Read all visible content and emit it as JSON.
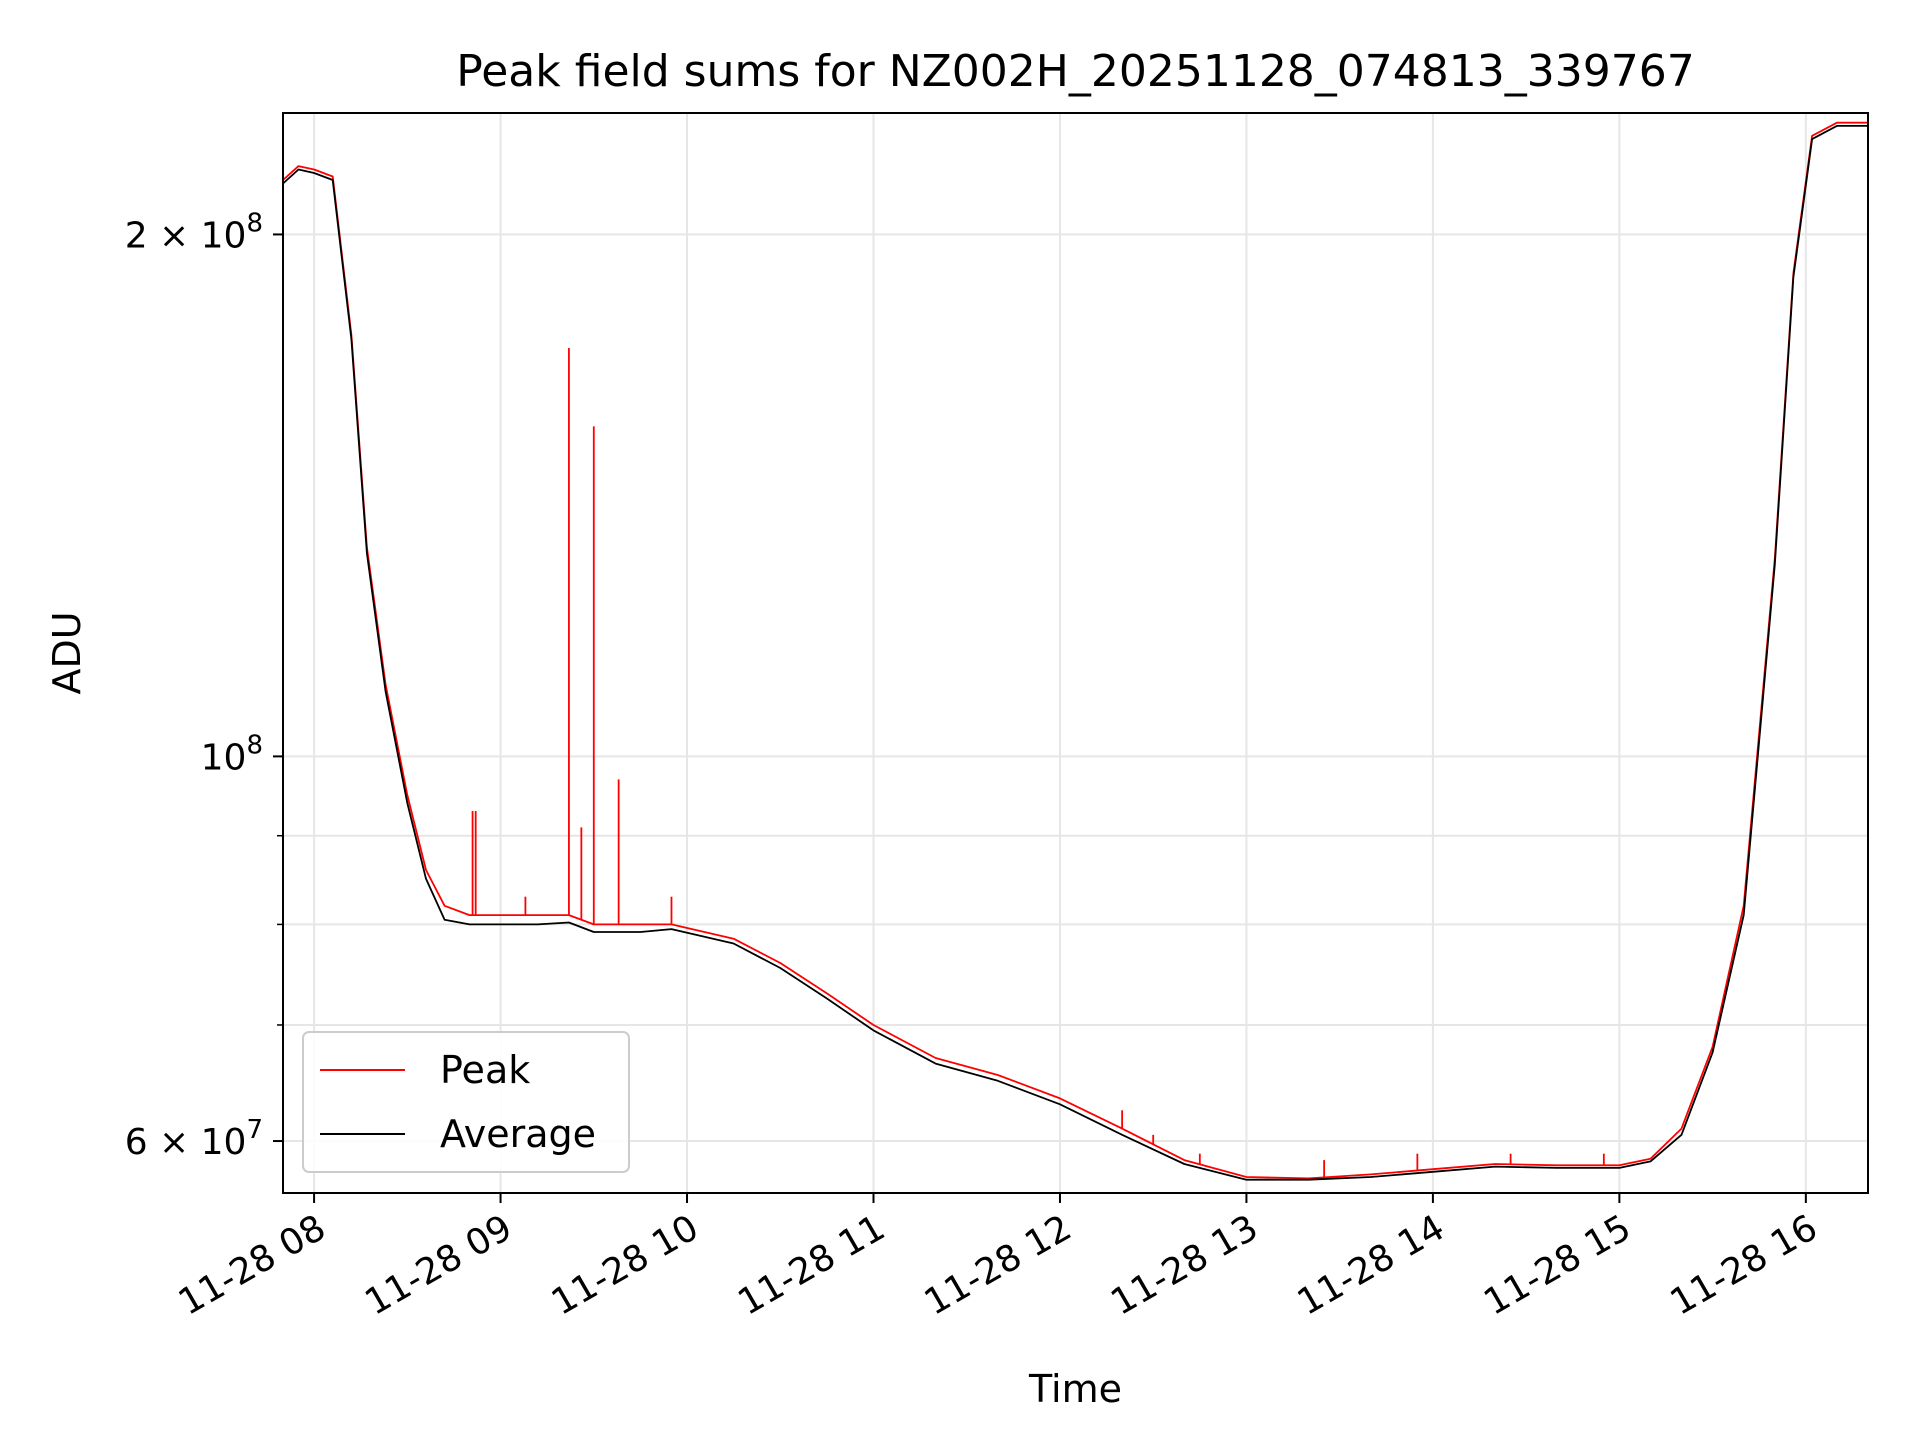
{
  "chart_data": {
    "type": "line",
    "title": "Peak field sums for NZ002H_20251128_074813_339767",
    "xlabel": "Time",
    "ylabel": "ADU",
    "y_scale": "log",
    "grid": true,
    "legend_position": "lower-left",
    "x_range": [
      "2025-11-28 07:50",
      "2025-11-28 16:20"
    ],
    "y_range": [
      56000000,
      235000000
    ],
    "x_ticks": [
      {
        "t": "2025-11-28 08:00",
        "label": "11-28 08"
      },
      {
        "t": "2025-11-28 09:00",
        "label": "11-28 09"
      },
      {
        "t": "2025-11-28 10:00",
        "label": "11-28 10"
      },
      {
        "t": "2025-11-28 11:00",
        "label": "11-28 11"
      },
      {
        "t": "2025-11-28 12:00",
        "label": "11-28 12"
      },
      {
        "t": "2025-11-28 13:00",
        "label": "11-28 13"
      },
      {
        "t": "2025-11-28 14:00",
        "label": "11-28 14"
      },
      {
        "t": "2025-11-28 15:00",
        "label": "11-28 15"
      },
      {
        "t": "2025-11-28 16:00",
        "label": "11-28 16"
      }
    ],
    "y_major_ticks": [
      {
        "value": 60000000,
        "label": "6 × 10^7",
        "mant": "6 × 10",
        "exp": "7"
      },
      {
        "value": 100000000,
        "label": "10^8",
        "mant": "10",
        "exp": "8"
      },
      {
        "value": 200000000,
        "label": "2 × 10^8",
        "mant": "2 × 10",
        "exp": "8"
      }
    ],
    "y_minor_ticks": [
      70000000,
      80000000,
      90000000
    ],
    "series": [
      {
        "name": "Peak",
        "color": "#ff0000",
        "points": [
          [
            "2025-11-28 07:50",
            215000000
          ],
          [
            "2025-11-28 07:55",
            219000000
          ],
          [
            "2025-11-28 08:00",
            218000000
          ],
          [
            "2025-11-28 08:06",
            216000000
          ],
          [
            "2025-11-28 08:12",
            175000000
          ],
          [
            "2025-11-28 08:17",
            132000000
          ],
          [
            "2025-11-28 08:23",
            110000000
          ],
          [
            "2025-11-28 08:30",
            95000000
          ],
          [
            "2025-11-28 08:36",
            86000000
          ],
          [
            "2025-11-28 08:42",
            82000000
          ],
          [
            "2025-11-28 08:50",
            81000000
          ],
          [
            "2025-11-28 09:00",
            81000000
          ],
          [
            "2025-11-28 09:12",
            81000000
          ],
          [
            "2025-11-28 09:22",
            81000000
          ],
          [
            "2025-11-28 09:30",
            80000000
          ],
          [
            "2025-11-28 09:45",
            80000000
          ],
          [
            "2025-11-28 09:55",
            80000000
          ],
          [
            "2025-11-28 10:15",
            78500000
          ],
          [
            "2025-11-28 10:30",
            76000000
          ],
          [
            "2025-11-28 10:45",
            73000000
          ],
          [
            "2025-11-28 11:00",
            70000000
          ],
          [
            "2025-11-28 11:20",
            67000000
          ],
          [
            "2025-11-28 11:40",
            65500000
          ],
          [
            "2025-11-28 12:00",
            63500000
          ],
          [
            "2025-11-28 12:20",
            61000000
          ],
          [
            "2025-11-28 12:40",
            58500000
          ],
          [
            "2025-11-28 13:00",
            57200000
          ],
          [
            "2025-11-28 13:20",
            57100000
          ],
          [
            "2025-11-28 13:40",
            57400000
          ],
          [
            "2025-11-28 14:00",
            57800000
          ],
          [
            "2025-11-28 14:20",
            58200000
          ],
          [
            "2025-11-28 14:40",
            58100000
          ],
          [
            "2025-11-28 15:00",
            58100000
          ],
          [
            "2025-11-28 15:10",
            58600000
          ],
          [
            "2025-11-28 15:20",
            61000000
          ],
          [
            "2025-11-28 15:30",
            68000000
          ],
          [
            "2025-11-28 15:40",
            82000000
          ],
          [
            "2025-11-28 15:50",
            130000000
          ],
          [
            "2025-11-28 15:56",
            190000000
          ],
          [
            "2025-11-28 16:02",
            228000000
          ],
          [
            "2025-11-28 16:10",
            232000000
          ],
          [
            "2025-11-28 16:20",
            232000000
          ]
        ],
        "spikes": [
          [
            "2025-11-28 08:51",
            93000000
          ],
          [
            "2025-11-28 08:52",
            93000000
          ],
          [
            "2025-11-28 09:08",
            83000000
          ],
          [
            "2025-11-28 09:22",
            172000000
          ],
          [
            "2025-11-28 09:26",
            91000000
          ],
          [
            "2025-11-28 09:30",
            155000000
          ],
          [
            "2025-11-28 09:38",
            97000000
          ],
          [
            "2025-11-28 09:55",
            83000000
          ],
          [
            "2025-11-28 12:20",
            62500000
          ],
          [
            "2025-11-28 12:30",
            60500000
          ],
          [
            "2025-11-28 12:45",
            59000000
          ],
          [
            "2025-11-28 13:25",
            58500000
          ],
          [
            "2025-11-28 13:55",
            59000000
          ],
          [
            "2025-11-28 14:25",
            59000000
          ],
          [
            "2025-11-28 14:55",
            59000000
          ]
        ]
      },
      {
        "name": "Average",
        "color": "#000000",
        "points": [
          [
            "2025-11-28 07:50",
            214000000
          ],
          [
            "2025-11-28 07:55",
            218000000
          ],
          [
            "2025-11-28 08:00",
            217000000
          ],
          [
            "2025-11-28 08:06",
            215000000
          ],
          [
            "2025-11-28 08:12",
            174000000
          ],
          [
            "2025-11-28 08:17",
            131000000
          ],
          [
            "2025-11-28 08:23",
            109000000
          ],
          [
            "2025-11-28 08:30",
            94000000
          ],
          [
            "2025-11-28 08:36",
            85000000
          ],
          [
            "2025-11-28 08:42",
            80500000
          ],
          [
            "2025-11-28 08:50",
            80000000
          ],
          [
            "2025-11-28 09:00",
            80000000
          ],
          [
            "2025-11-28 09:12",
            80000000
          ],
          [
            "2025-11-28 09:22",
            80200000
          ],
          [
            "2025-11-28 09:30",
            79200000
          ],
          [
            "2025-11-28 09:45",
            79200000
          ],
          [
            "2025-11-28 09:55",
            79500000
          ],
          [
            "2025-11-28 10:15",
            78000000
          ],
          [
            "2025-11-28 10:30",
            75500000
          ],
          [
            "2025-11-28 10:45",
            72500000
          ],
          [
            "2025-11-28 11:00",
            69500000
          ],
          [
            "2025-11-28 11:20",
            66500000
          ],
          [
            "2025-11-28 11:40",
            65000000
          ],
          [
            "2025-11-28 12:00",
            63000000
          ],
          [
            "2025-11-28 12:20",
            60500000
          ],
          [
            "2025-11-28 12:40",
            58200000
          ],
          [
            "2025-11-28 13:00",
            57000000
          ],
          [
            "2025-11-28 13:20",
            57000000
          ],
          [
            "2025-11-28 13:40",
            57200000
          ],
          [
            "2025-11-28 14:00",
            57600000
          ],
          [
            "2025-11-28 14:20",
            58000000
          ],
          [
            "2025-11-28 14:40",
            57900000
          ],
          [
            "2025-11-28 15:00",
            57900000
          ],
          [
            "2025-11-28 15:10",
            58400000
          ],
          [
            "2025-11-28 15:20",
            60500000
          ],
          [
            "2025-11-28 15:30",
            67500000
          ],
          [
            "2025-11-28 15:40",
            81000000
          ],
          [
            "2025-11-28 15:50",
            129000000
          ],
          [
            "2025-11-28 15:56",
            189000000
          ],
          [
            "2025-11-28 16:02",
            227000000
          ],
          [
            "2025-11-28 16:10",
            231000000
          ],
          [
            "2025-11-28 16:20",
            231000000
          ]
        ]
      }
    ]
  }
}
